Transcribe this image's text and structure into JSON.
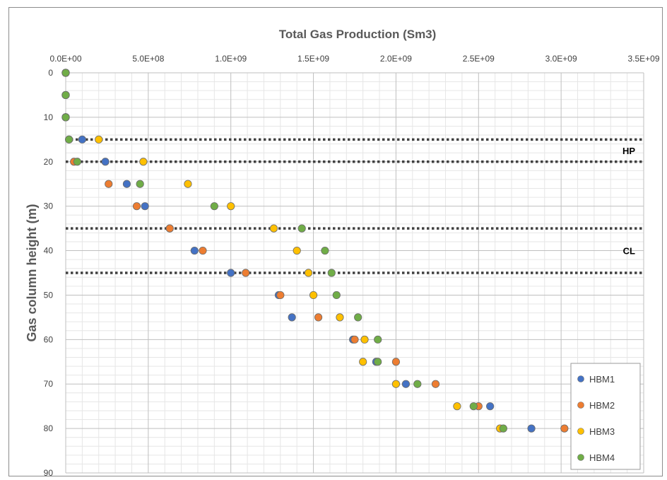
{
  "chart_data": {
    "type": "scatter",
    "title": "Total Gas Production (Sm3)",
    "xlabel": "Total Gas Production (Sm3)",
    "ylabel": "Gas column height (m)",
    "xlim": [
      0,
      3500000000
    ],
    "ylim": [
      0,
      90
    ],
    "y_inverted": true,
    "x_axis_position": "top",
    "x_ticks": [
      0,
      500000000,
      1000000000,
      1500000000,
      2000000000,
      2500000000,
      3000000000,
      3500000000
    ],
    "x_tick_labels": [
      "0.0E+00",
      "5.0E+08",
      "1.0E+09",
      "1.5E+09",
      "2.0E+09",
      "2.5E+09",
      "3.0E+09",
      "3.5E+09"
    ],
    "y_ticks": [
      0,
      10,
      20,
      30,
      40,
      50,
      60,
      70,
      80,
      90
    ],
    "y_tick_labels": [
      "0",
      "10",
      "20",
      "30",
      "40",
      "50",
      "60",
      "70",
      "80",
      "90"
    ],
    "grid": true,
    "legend_position": "bottom-right",
    "reference_lines": [
      {
        "y": 15,
        "style": "dotted"
      },
      {
        "y": 20,
        "style": "dotted"
      },
      {
        "y": 35,
        "style": "dotted"
      },
      {
        "y": 45,
        "style": "dotted"
      }
    ],
    "annotations": [
      {
        "text": "HP",
        "y": 17.5
      },
      {
        "text": "CL",
        "y": 40
      }
    ],
    "series": [
      {
        "name": "HBM1",
        "color": "#4472C4",
        "points": [
          {
            "x": 0,
            "y": 0
          },
          {
            "x": 0,
            "y": 5
          },
          {
            "x": 0,
            "y": 10
          },
          {
            "x": 100000000,
            "y": 15
          },
          {
            "x": 240000000,
            "y": 20
          },
          {
            "x": 370000000,
            "y": 25
          },
          {
            "x": 480000000,
            "y": 30
          },
          {
            "x": 630000000,
            "y": 35
          },
          {
            "x": 780000000,
            "y": 40
          },
          {
            "x": 1000000000,
            "y": 45
          },
          {
            "x": 1290000000,
            "y": 50
          },
          {
            "x": 1370000000,
            "y": 55
          },
          {
            "x": 1740000000,
            "y": 60
          },
          {
            "x": 1880000000,
            "y": 65
          },
          {
            "x": 2060000000,
            "y": 70
          },
          {
            "x": 2570000000,
            "y": 75
          },
          {
            "x": 2820000000,
            "y": 80
          }
        ]
      },
      {
        "name": "HBM2",
        "color": "#ED7D31",
        "points": [
          {
            "x": 0,
            "y": 0
          },
          {
            "x": 0,
            "y": 5
          },
          {
            "x": 0,
            "y": 10
          },
          {
            "x": 20000000,
            "y": 15
          },
          {
            "x": 50000000,
            "y": 20
          },
          {
            "x": 260000000,
            "y": 25
          },
          {
            "x": 430000000,
            "y": 30
          },
          {
            "x": 630000000,
            "y": 35
          },
          {
            "x": 830000000,
            "y": 40
          },
          {
            "x": 1090000000,
            "y": 45
          },
          {
            "x": 1300000000,
            "y": 50
          },
          {
            "x": 1530000000,
            "y": 55
          },
          {
            "x": 1750000000,
            "y": 60
          },
          {
            "x": 2000000000,
            "y": 65
          },
          {
            "x": 2240000000,
            "y": 70
          },
          {
            "x": 2500000000,
            "y": 75
          },
          {
            "x": 3020000000,
            "y": 80
          }
        ]
      },
      {
        "name": "HBM3",
        "color": "#FFC000",
        "points": [
          {
            "x": 0,
            "y": 0
          },
          {
            "x": 0,
            "y": 5
          },
          {
            "x": 0,
            "y": 10
          },
          {
            "x": 200000000,
            "y": 15
          },
          {
            "x": 470000000,
            "y": 20
          },
          {
            "x": 740000000,
            "y": 25
          },
          {
            "x": 1000000000,
            "y": 30
          },
          {
            "x": 1260000000,
            "y": 35
          },
          {
            "x": 1400000000,
            "y": 40
          },
          {
            "x": 1470000000,
            "y": 45
          },
          {
            "x": 1500000000,
            "y": 50
          },
          {
            "x": 1660000000,
            "y": 55
          },
          {
            "x": 1810000000,
            "y": 60
          },
          {
            "x": 1800000000,
            "y": 65
          },
          {
            "x": 2000000000,
            "y": 70
          },
          {
            "x": 2370000000,
            "y": 75
          },
          {
            "x": 2630000000,
            "y": 80
          }
        ]
      },
      {
        "name": "HBM4",
        "color": "#70AD47",
        "points": [
          {
            "x": 0,
            "y": 0
          },
          {
            "x": 0,
            "y": 5
          },
          {
            "x": 0,
            "y": 10
          },
          {
            "x": 20000000,
            "y": 15
          },
          {
            "x": 70000000,
            "y": 20
          },
          {
            "x": 450000000,
            "y": 25
          },
          {
            "x": 900000000,
            "y": 30
          },
          {
            "x": 1430000000,
            "y": 35
          },
          {
            "x": 1570000000,
            "y": 40
          },
          {
            "x": 1610000000,
            "y": 45
          },
          {
            "x": 1640000000,
            "y": 50
          },
          {
            "x": 1770000000,
            "y": 55
          },
          {
            "x": 1890000000,
            "y": 60
          },
          {
            "x": 1890000000,
            "y": 65
          },
          {
            "x": 2130000000,
            "y": 70
          },
          {
            "x": 2470000000,
            "y": 75
          },
          {
            "x": 2650000000,
            "y": 80
          }
        ]
      }
    ]
  }
}
